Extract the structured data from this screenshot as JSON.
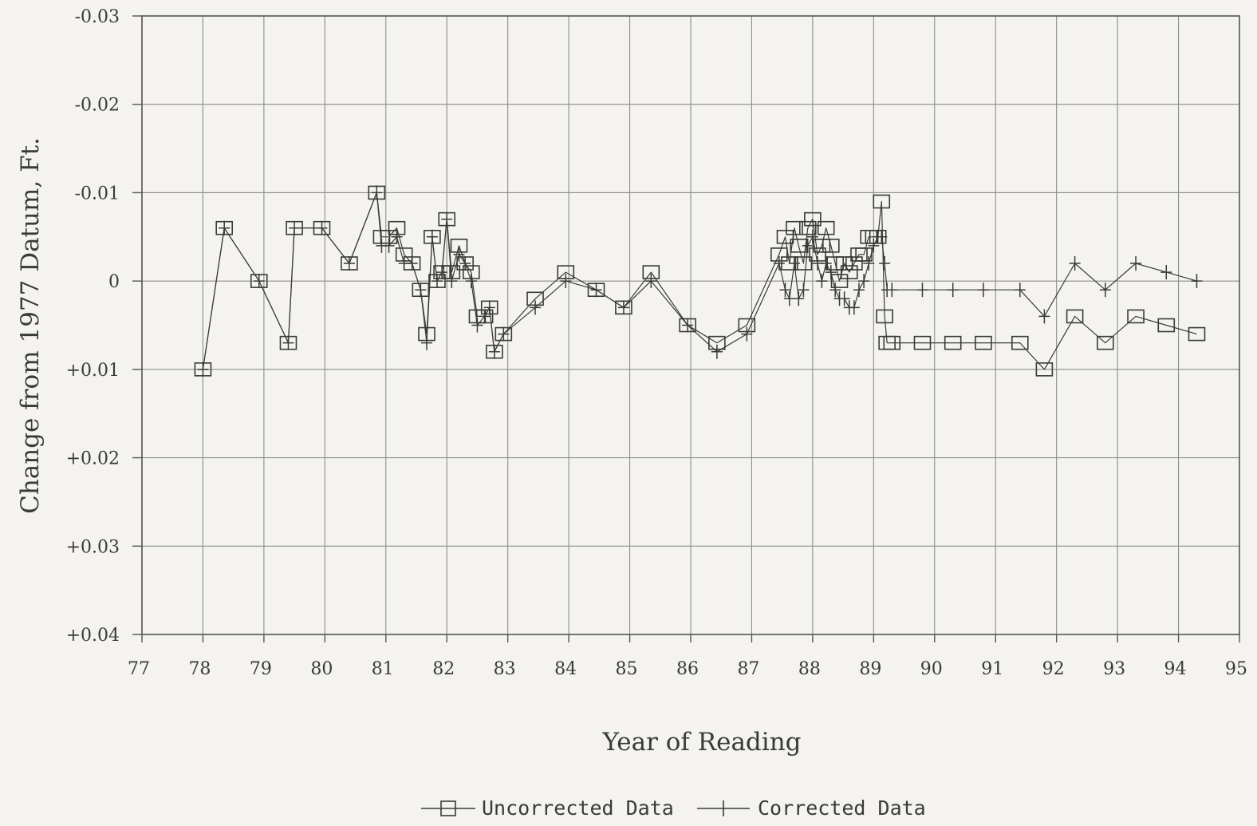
{
  "chart_data": {
    "type": "line",
    "title": "",
    "xlabel": "Year of Reading",
    "ylabel": "Change from 1977 Datum, Ft.",
    "xlim": [
      77,
      95
    ],
    "ylim": [
      -0.03,
      0.04
    ],
    "y_inverted": true,
    "grid": true,
    "legend_position": "bottom-center",
    "x_ticks": [
      "77",
      "78",
      "79",
      "80",
      "81",
      "82",
      "83",
      "84",
      "85",
      "86",
      "87",
      "88",
      "89",
      "90",
      "91",
      "92",
      "93",
      "94",
      "95"
    ],
    "x_tick_values": [
      77,
      78,
      79,
      80,
      81,
      82,
      83,
      84,
      85,
      86,
      87,
      88,
      89,
      90,
      91,
      92,
      93,
      94,
      95
    ],
    "y_ticks": [
      "-0.03",
      "-0.02",
      "-0.01",
      "0",
      "+0.01",
      "+0.02",
      "+0.03",
      "+0.04"
    ],
    "y_tick_values": [
      -0.03,
      -0.02,
      -0.01,
      0,
      0.01,
      0.02,
      0.03,
      0.04
    ],
    "series": [
      {
        "name": "Uncorrected Data",
        "marker": "square",
        "color": "#3a3a3a",
        "x": [
          78.0,
          78.35,
          78.92,
          79.4,
          79.5,
          79.95,
          80.4,
          80.85,
          80.93,
          81.05,
          81.18,
          81.3,
          81.43,
          81.57,
          81.67,
          81.76,
          81.84,
          81.92,
          82.0,
          82.08,
          82.2,
          82.3,
          82.4,
          82.5,
          82.62,
          82.7,
          82.78,
          82.93,
          83.45,
          83.95,
          84.45,
          84.9,
          85.35,
          85.95,
          86.43,
          86.92,
          87.45,
          87.55,
          87.62,
          87.7,
          87.77,
          87.85,
          87.92,
          88.0,
          88.08,
          88.15,
          88.22,
          88.3,
          88.37,
          88.44,
          88.52,
          88.6,
          88.68,
          88.76,
          88.84,
          88.92,
          89.0,
          89.07,
          89.13,
          89.18,
          89.22,
          89.3,
          89.8,
          90.3,
          90.8,
          91.4,
          91.8,
          92.3,
          92.8,
          93.3,
          93.8,
          94.3
        ],
        "y": [
          0.01,
          -0.006,
          0.0,
          0.007,
          -0.006,
          -0.006,
          -0.002,
          -0.01,
          -0.005,
          -0.005,
          -0.006,
          -0.003,
          -0.002,
          0.001,
          0.006,
          -0.005,
          0.0,
          -0.001,
          -0.007,
          -0.001,
          -0.004,
          -0.002,
          -0.001,
          0.004,
          0.004,
          0.003,
          0.008,
          0.006,
          0.002,
          -0.001,
          0.001,
          0.003,
          -0.001,
          0.005,
          0.007,
          0.005,
          -0.003,
          -0.005,
          -0.002,
          -0.006,
          -0.004,
          -0.002,
          -0.006,
          -0.007,
          -0.003,
          -0.004,
          -0.006,
          -0.004,
          -0.002,
          0.0,
          -0.002,
          -0.001,
          -0.002,
          -0.003,
          -0.003,
          -0.005,
          -0.005,
          -0.005,
          -0.009,
          0.004,
          0.007,
          0.007,
          0.007,
          0.007,
          0.007,
          0.007,
          0.01,
          0.004,
          0.007,
          0.004,
          0.005,
          0.006
        ]
      },
      {
        "name": "Corrected Data",
        "marker": "plus",
        "color": "#3a3a3a",
        "x": [
          78.0,
          78.35,
          78.92,
          79.4,
          79.5,
          79.95,
          80.4,
          80.85,
          80.93,
          81.05,
          81.18,
          81.3,
          81.43,
          81.57,
          81.67,
          81.76,
          81.84,
          81.92,
          82.0,
          82.08,
          82.2,
          82.3,
          82.4,
          82.5,
          82.62,
          82.7,
          82.78,
          82.93,
          83.45,
          83.95,
          84.45,
          84.9,
          85.35,
          85.95,
          86.43,
          86.92,
          87.45,
          87.55,
          87.62,
          87.7,
          87.77,
          87.85,
          87.92,
          88.0,
          88.08,
          88.15,
          88.22,
          88.3,
          88.37,
          88.44,
          88.52,
          88.6,
          88.68,
          88.76,
          88.84,
          88.92,
          89.0,
          89.07,
          89.13,
          89.18,
          89.22,
          89.3,
          89.8,
          90.3,
          90.8,
          91.4,
          91.8,
          92.3,
          92.8,
          93.3,
          93.8,
          94.3
        ],
        "y": [
          0.01,
          -0.006,
          0.0,
          0.007,
          -0.006,
          -0.006,
          -0.002,
          -0.01,
          -0.004,
          -0.004,
          -0.005,
          -0.002,
          -0.002,
          0.001,
          0.007,
          -0.005,
          0.0,
          -0.001,
          -0.007,
          0.0,
          -0.003,
          -0.002,
          0.0,
          0.005,
          0.004,
          0.003,
          0.008,
          0.006,
          0.003,
          0.0,
          0.001,
          0.003,
          0.0,
          0.005,
          0.008,
          0.006,
          -0.002,
          0.001,
          0.002,
          -0.002,
          0.002,
          0.001,
          -0.004,
          -0.005,
          -0.002,
          0.0,
          -0.002,
          -0.001,
          0.001,
          0.002,
          0.002,
          0.003,
          0.003,
          0.001,
          0.0,
          -0.002,
          -0.004,
          -0.005,
          -0.005,
          -0.002,
          0.001,
          0.001,
          0.001,
          0.001,
          0.001,
          0.001,
          0.004,
          -0.002,
          0.001,
          -0.002,
          -0.001,
          0.0
        ]
      }
    ]
  }
}
